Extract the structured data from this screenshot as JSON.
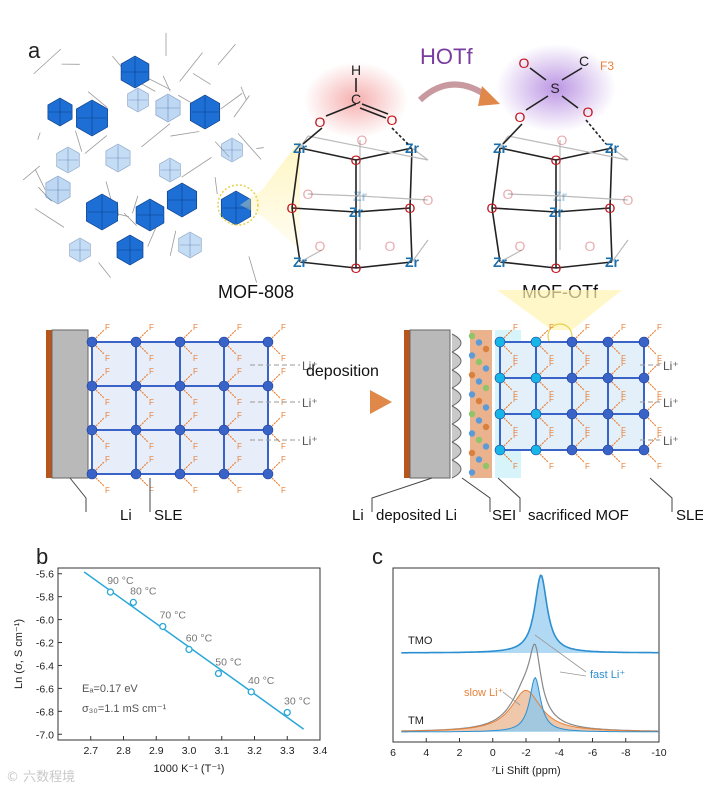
{
  "panel_a": {
    "label": "a",
    "reagent": "HOTf",
    "left_framework_name": "MOF-808",
    "right_framework_name": "MOF-OTf",
    "cluster_metal": "Zr",
    "cluster_oxygen": "O",
    "formate_h": "H",
    "formate_c": "C",
    "triflate_s": "S",
    "triflate_cf3_c": "C",
    "triflate_cf3_f": "F3",
    "fluorine": "F",
    "lithium_ion": "Li⁺",
    "process_label": "deposition",
    "left_cell_labels": [
      "Li",
      "SLE"
    ],
    "right_cell_labels": [
      "Li",
      "deposited Li",
      "SEI",
      "sacrificed MOF",
      "SLE"
    ]
  },
  "colors": {
    "zr": "#1e6fa8",
    "oxygen": "#c0141c",
    "accent_purple": "#7a3ca0",
    "fluorine": "#e8823a",
    "li_metal": "#b8551a",
    "node": "#3a63c8",
    "node_cyan": "#17b6e6",
    "fit_line": "#2aa7d8",
    "slow_li": "#e8823a",
    "fast_li": "#2c8fd0"
  },
  "chart_data": [
    {
      "panel": "b",
      "type": "scatter",
      "xlabel": "1000 K⁻¹ (T⁻¹)",
      "ylabel": "Ln (σ, S cm⁻¹)",
      "xlim": [
        2.6,
        3.4
      ],
      "ylim": [
        -7.05,
        -5.55
      ],
      "xticks": [
        "2.7",
        "2.8",
        "2.9",
        "3.0",
        "3.1",
        "3.2",
        "3.3",
        "3.4"
      ],
      "yticks": [
        "-5.6",
        "-5.8",
        "-6.0",
        "-6.2",
        "-6.4",
        "-6.6",
        "-6.8",
        "-7.0"
      ],
      "x": [
        2.76,
        2.83,
        2.92,
        3.0,
        3.09,
        3.19,
        3.3
      ],
      "y": [
        -5.76,
        -5.85,
        -6.06,
        -6.26,
        -6.47,
        -6.63,
        -6.81
      ],
      "point_labels": [
        "90 °C",
        "80 °C",
        "70 °C",
        "60 °C",
        "50 °C",
        "40 °C",
        "30 °C"
      ],
      "fit": {
        "x": [
          2.68,
          3.35
        ],
        "y": [
          -5.585,
          -6.955
        ]
      },
      "annotations": [
        "Eₐ=0.17 eV",
        "σ₃₀=1.1 mS cm⁻¹"
      ]
    },
    {
      "panel": "c",
      "type": "line",
      "xlabel": "⁷Li Shift (ppm)",
      "xlim": [
        6,
        -10
      ],
      "xticks": [
        "6",
        "4",
        "2",
        "0",
        "-2",
        "-4",
        "-6",
        "-8",
        "-10"
      ],
      "series": [
        {
          "name": "TMO",
          "center": -2.9,
          "width": 0.45,
          "height": 1.0
        },
        {
          "name": "TM",
          "components": [
            {
              "name": "slow Li⁺",
              "center": -2.0,
              "width": 1.1,
              "height": 0.52
            },
            {
              "name": "fast Li⁺",
              "center": -2.55,
              "width": 0.4,
              "height": 0.68
            }
          ]
        }
      ],
      "labels": {
        "tmo": "TMO",
        "tm": "TM",
        "slow": "slow Li⁺",
        "fast": "fast Li⁺"
      }
    }
  ],
  "panel_labels": {
    "b": "b",
    "c": "c"
  },
  "watermark": "© 六数程境"
}
